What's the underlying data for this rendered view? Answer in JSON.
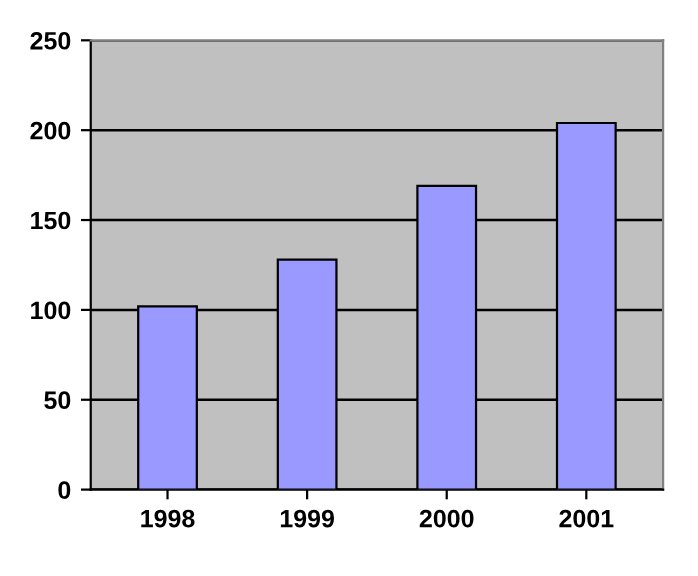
{
  "chart_data": {
    "type": "bar",
    "categories": [
      "1998",
      "1999",
      "2000",
      "2001"
    ],
    "values": [
      102,
      128,
      169,
      204
    ],
    "color": "#9999ff",
    "ylim": [
      0,
      250
    ],
    "yticks": [
      0,
      50,
      100,
      150,
      200,
      250
    ],
    "grid": "y",
    "legend": false
  }
}
